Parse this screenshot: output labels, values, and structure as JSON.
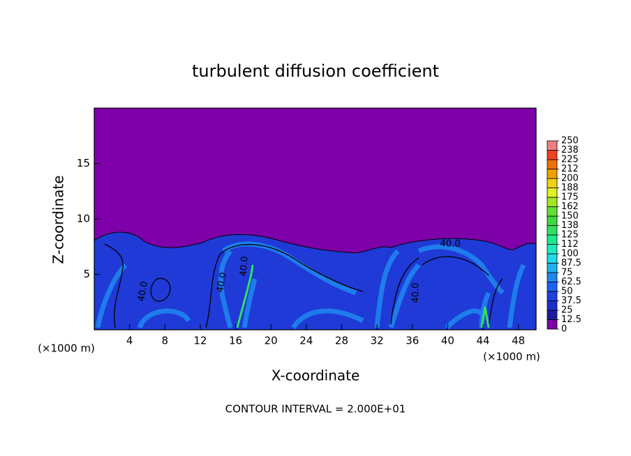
{
  "chart_data": {
    "type": "contour",
    "title": "turbulent diffusion coefficient",
    "xlabel": "X-coordinate",
    "ylabel": "Z-coordinate",
    "x_unit": "(×1000 m)",
    "footer": "CONTOUR INTERVAL = 2.000E+01",
    "xlim": [
      0,
      50
    ],
    "ylim": [
      0,
      20
    ],
    "xticks": [
      4,
      8,
      12,
      16,
      20,
      24,
      28,
      32,
      36,
      40,
      44,
      48
    ],
    "yticks": [
      5,
      10,
      15
    ],
    "contour_labels": [
      "40.0",
      "40.0",
      "40.0",
      "40.0",
      "40.0"
    ],
    "colorbar": {
      "levels": [
        0,
        12.5,
        25,
        37.5,
        50,
        62.5,
        75,
        87.5,
        100,
        112,
        125,
        138,
        150,
        162,
        175,
        188,
        200,
        212,
        225,
        238,
        250
      ],
      "colors": [
        "#7d00a8",
        "#1a1aa0",
        "#1c2ecc",
        "#2040e0",
        "#1e60f0",
        "#1e88f0",
        "#20b0f0",
        "#20d8e8",
        "#20e8c0",
        "#20e890",
        "#30e060",
        "#40d840",
        "#60e030",
        "#a0e820",
        "#e0f020",
        "#f0d010",
        "#f0a000",
        "#f07000",
        "#f04020",
        "#f08080"
      ]
    }
  }
}
